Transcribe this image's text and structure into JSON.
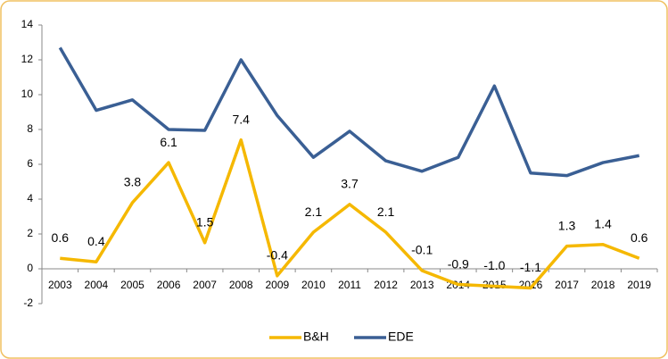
{
  "chart_data": {
    "type": "line",
    "categories": [
      "2003",
      "2004",
      "2005",
      "2006",
      "2007",
      "2008",
      "2009",
      "2010",
      "2011",
      "2012",
      "2013",
      "2014",
      "2015",
      "2016",
      "2017",
      "2018",
      "2019"
    ],
    "series": [
      {
        "name": "B&H",
        "color": "#f5b800",
        "values": [
          0.6,
          0.4,
          3.8,
          6.1,
          1.5,
          7.4,
          -0.4,
          2.1,
          3.7,
          2.1,
          -0.1,
          -0.9,
          -1.0,
          -1.1,
          1.3,
          1.4,
          0.6
        ],
        "value_labels": [
          "0.6",
          "0.4",
          "3.8",
          "6.1",
          "1.5",
          "7.4",
          "-0.4",
          "2.1",
          "3.7",
          "2.1",
          "-0.1",
          "-0.9",
          "-1.0",
          "-1.1",
          "1.3",
          "1.4",
          "0.6"
        ]
      },
      {
        "name": "EDE",
        "color": "#3a5f94",
        "values": [
          12.7,
          9.1,
          9.7,
          8.0,
          7.95,
          12.0,
          8.8,
          6.4,
          7.9,
          6.2,
          5.6,
          6.4,
          10.5,
          5.5,
          5.35,
          6.1,
          6.5
        ]
      }
    ],
    "ylim": [
      -2,
      14
    ],
    "yticks": [
      -2,
      0,
      2,
      4,
      6,
      8,
      10,
      12,
      14
    ],
    "legend": "bottom"
  }
}
